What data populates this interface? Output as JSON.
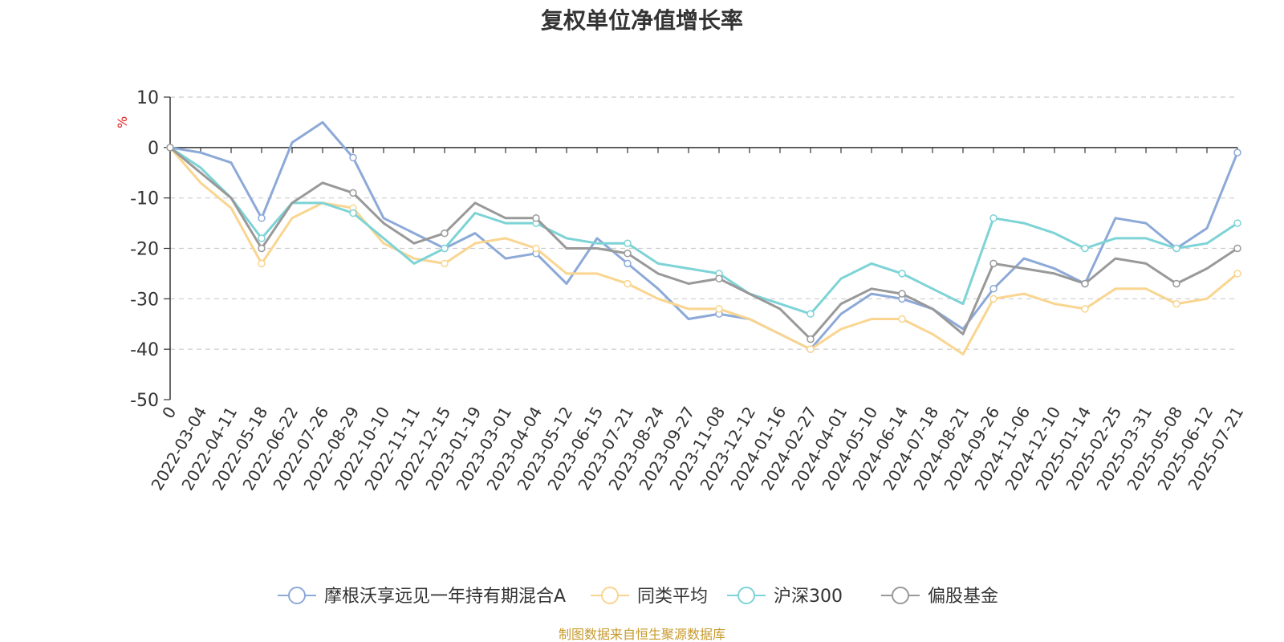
{
  "chart_data": {
    "type": "line",
    "title": "复权单位净值增长率",
    "ylabel": "%",
    "ylim": [
      -50,
      10
    ],
    "yticks": [
      10,
      0,
      -10,
      -20,
      -30,
      -40,
      -50
    ],
    "grid": true,
    "legend_position": "bottom-center",
    "categories": [
      "0",
      "2022-03-04",
      "2022-04-11",
      "2022-05-18",
      "2022-06-22",
      "2022-07-26",
      "2022-08-29",
      "2022-10-10",
      "2022-11-11",
      "2022-12-15",
      "2023-01-19",
      "2023-03-01",
      "2023-04-04",
      "2023-05-12",
      "2023-06-15",
      "2023-07-21",
      "2023-08-24",
      "2023-09-27",
      "2023-11-08",
      "2023-12-12",
      "2024-01-16",
      "2024-02-27",
      "2024-04-01",
      "2024-05-10",
      "2024-06-14",
      "2024-07-18",
      "2024-08-21",
      "2024-09-26",
      "2024-11-06",
      "2024-12-10",
      "2025-01-14",
      "2025-02-25",
      "2025-03-31",
      "2025-05-08",
      "2025-06-12",
      "2025-07-21"
    ],
    "series": [
      {
        "name": "摩根沃享远见一年持有期混合A",
        "color": "#8ca9d8",
        "values": [
          0,
          -1,
          -3,
          -14,
          1,
          5,
          -2,
          -14,
          -17,
          -20,
          -17,
          -22,
          -21,
          -27,
          -18,
          -23,
          -28,
          -34,
          -33,
          -34,
          -37,
          -40,
          -33,
          -29,
          -30,
          -32,
          -36,
          -28,
          -22,
          -24,
          -27,
          -14,
          -15,
          -20,
          -16,
          -1
        ]
      },
      {
        "name": "同类平均",
        "color": "#f9d590",
        "values": [
          0,
          -7,
          -12,
          -23,
          -14,
          -11,
          -12,
          -19,
          -22,
          -23,
          -19,
          -18,
          -20,
          -25,
          -25,
          -27,
          -30,
          -32,
          -32,
          -34,
          -37,
          -40,
          -36,
          -34,
          -34,
          -37,
          -41,
          -30,
          -29,
          -31,
          -32,
          -28,
          -28,
          -31,
          -30,
          -25
        ]
      },
      {
        "name": "沪深300",
        "color": "#7dd3d6",
        "values": [
          0,
          -4,
          -10,
          -18,
          -11,
          -11,
          -13,
          -18,
          -23,
          -20,
          -13,
          -15,
          -15,
          -18,
          -19,
          -19,
          -23,
          -24,
          -25,
          -29,
          -31,
          -33,
          -26,
          -23,
          -25,
          -28,
          -31,
          -14,
          -15,
          -17,
          -20,
          -18,
          -18,
          -20,
          -19,
          -15
        ]
      },
      {
        "name": "偏股基金",
        "color": "#999999",
        "values": [
          0,
          -5,
          -10,
          -20,
          -11,
          -7,
          -9,
          -15,
          -19,
          -17,
          -11,
          -14,
          -14,
          -20,
          -20,
          -21,
          -25,
          -27,
          -26,
          -29,
          -32,
          -38,
          -31,
          -28,
          -29,
          -32,
          -37,
          -23,
          -24,
          -25,
          -27,
          -22,
          -23,
          -27,
          -24,
          -20
        ]
      }
    ]
  },
  "source_note": "制图数据来自恒生聚源数据库"
}
